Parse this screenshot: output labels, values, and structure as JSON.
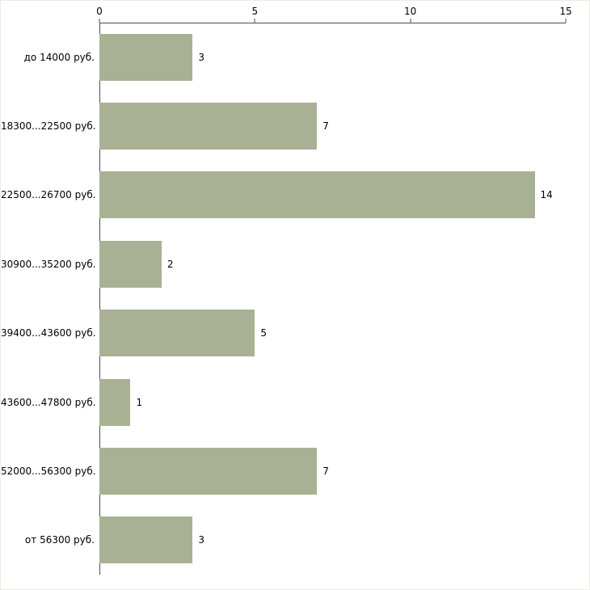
{
  "chart_data": {
    "type": "bar",
    "orientation": "horizontal",
    "title": "",
    "xlabel": "",
    "ylabel": "",
    "categories": [
      "до 14000 руб.",
      "18300...22500 руб.",
      "22500...26700 руб.",
      "30900...35200 руб.",
      "39400...43600 руб.",
      "43600...47800 руб.",
      "52000...56300 руб.",
      "от 56300 руб."
    ],
    "values": [
      3,
      7,
      14,
      2,
      5,
      1,
      7,
      3
    ],
    "xlim": [
      0,
      15
    ],
    "x_ticks": [
      0,
      5,
      10,
      15
    ],
    "grid": false,
    "legend": false,
    "data_labels": [
      "3",
      "7",
      "14",
      "2",
      "5",
      "1",
      "7",
      "3"
    ]
  },
  "colors": {
    "bar_fill": "#a9b195",
    "axis": "#4d4d4d",
    "text": "#000000",
    "background": "#ffffff",
    "frame_border": "#eceee2"
  }
}
